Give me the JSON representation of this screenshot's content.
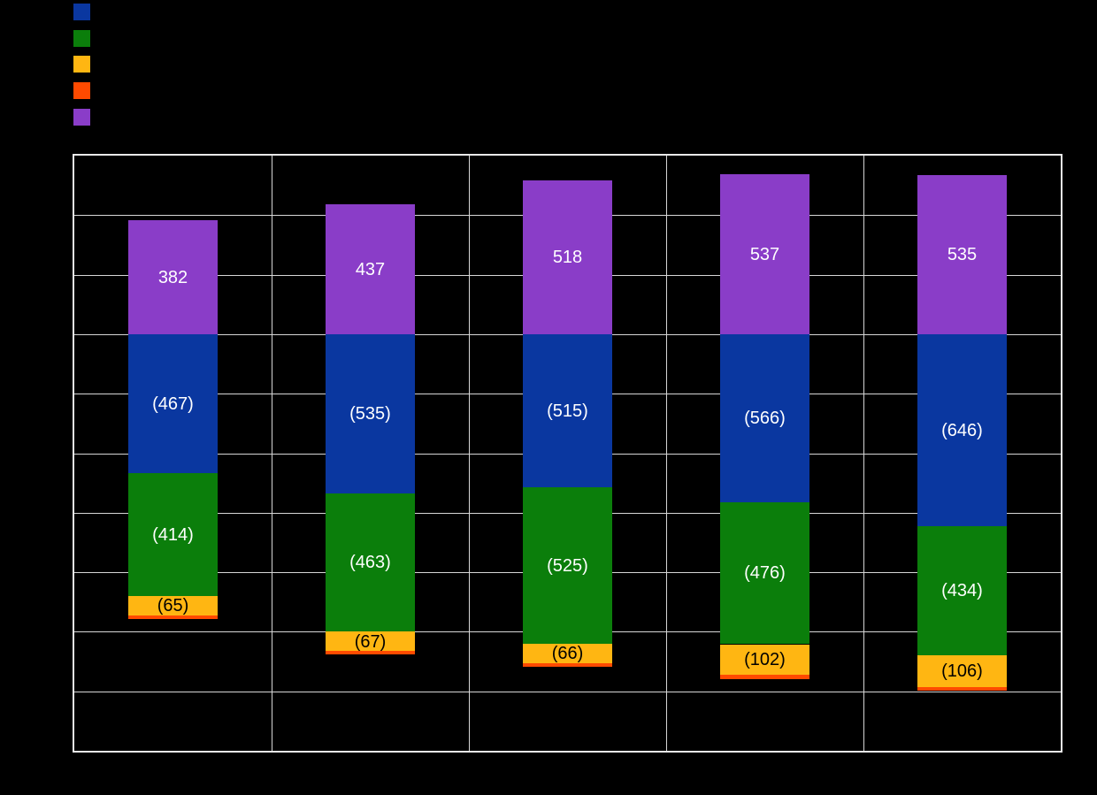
{
  "canvas": {
    "background_color": "#000000"
  },
  "chart_data": {
    "type": "bar",
    "stacked": true,
    "orientation": "vertical",
    "title": "",
    "xlabel": "",
    "ylabel": "",
    "categories": [
      "",
      "",
      "",
      "",
      ""
    ],
    "series": [
      {
        "name": "series-blue",
        "legend_label": "",
        "color": "#0A37A0",
        "label_color": "#FFFFFF",
        "show_labels": true,
        "values": [
          -467,
          -535,
          -515,
          -566,
          -646
        ]
      },
      {
        "name": "series-green",
        "legend_label": "",
        "color": "#0B7E0B",
        "label_color": "#FFFFFF",
        "show_labels": true,
        "values": [
          -414,
          -463,
          -525,
          -476,
          -434
        ]
      },
      {
        "name": "series-amber",
        "legend_label": "",
        "color": "#FFB612",
        "label_color": "#000000",
        "show_labels": true,
        "values": [
          -65,
          -67,
          -66,
          -102,
          -106
        ]
      },
      {
        "name": "series-orange",
        "legend_label": "",
        "color": "#FF4A00",
        "label_color": "#000000",
        "show_labels": false,
        "values": [
          -13,
          -12,
          -12,
          -15,
          -12
        ]
      },
      {
        "name": "series-purple",
        "legend_label": "",
        "color": "#8A3DC8",
        "label_color": "#FFFFFF",
        "show_labels": true,
        "values": [
          382,
          437,
          518,
          537,
          535
        ]
      }
    ],
    "label_format": "negatives_in_parentheses",
    "visible_positive_labels": [
      "382",
      "437",
      "518",
      "537",
      "535"
    ],
    "visible_negative_labels": [
      [
        "(467)",
        "(414)",
        "(65)"
      ],
      [
        "(535)",
        "(463)",
        "(67)"
      ],
      [
        "(515)",
        "(525)",
        "(66)"
      ],
      [
        "(566)",
        "(476)",
        "(102)"
      ],
      [
        "(646)",
        "(434)",
        "(106)"
      ]
    ],
    "ylim": [
      -1400,
      600
    ],
    "ytick_step": 200,
    "grid": true,
    "grid_color": "#D6D6D6",
    "plot_border_color": "#E9E9E9",
    "legend_position": "top-left",
    "axis_tick_labels_visible": false
  }
}
